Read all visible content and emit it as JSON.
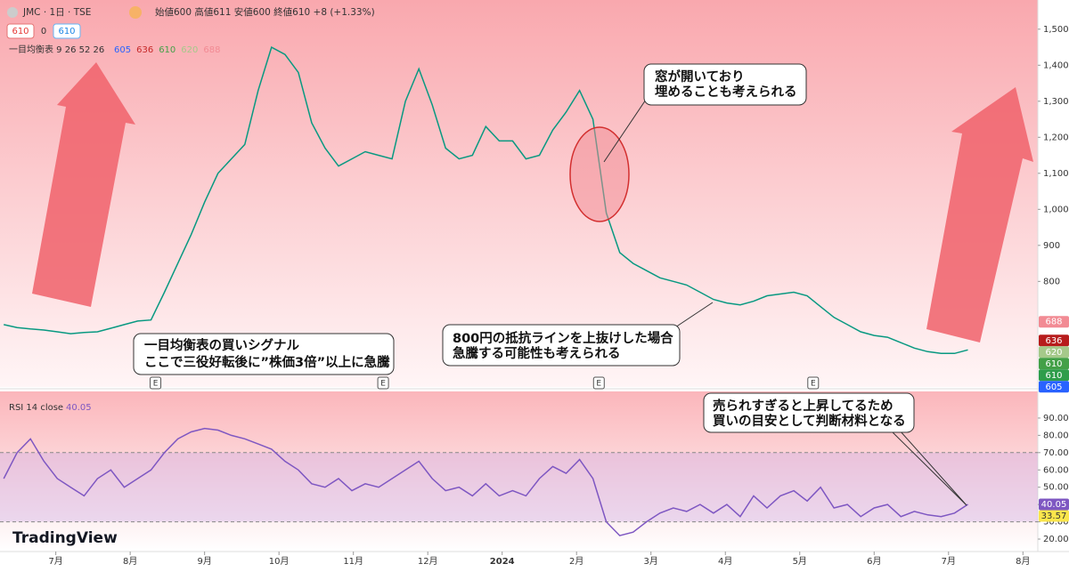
{
  "chart_data": [
    {
      "type": "line",
      "title": "JMC · 1日 · TSE",
      "ohlc_label": "始値600 高値611 安値600 終値610 +8 (+1.33%)",
      "header_boxes": [
        "610",
        "0",
        "610"
      ],
      "indicator_label": "一目均衡表 9 26 52 26",
      "indicator_values": [
        "605",
        "636",
        "610",
        "620",
        "688"
      ],
      "color": "#089981",
      "x": [
        6.3,
        6.48,
        6.66,
        6.84,
        7.02,
        7.2,
        7.38,
        7.56,
        7.74,
        7.92,
        8.1,
        8.28,
        8.46,
        8.64,
        8.82,
        9.0,
        9.18,
        9.36,
        9.54,
        9.72,
        9.9,
        10.08,
        10.26,
        10.44,
        10.62,
        10.8,
        10.98,
        11.16,
        11.34,
        11.52,
        11.7,
        11.88,
        12.06,
        12.24,
        12.42,
        12.6,
        12.78,
        12.96,
        13.14,
        13.32,
        13.5,
        13.68,
        13.86,
        14.04,
        14.22,
        14.4,
        14.58,
        14.76,
        14.94,
        15.12,
        15.3,
        15.48,
        15.66,
        15.84,
        16.02,
        16.2,
        16.38,
        16.56,
        16.74,
        16.92,
        17.1,
        17.28,
        17.46,
        17.64,
        17.82,
        18.0,
        18.18,
        18.36,
        18.54,
        18.72,
        18.9,
        19.08,
        19.26
      ],
      "values": [
        680,
        672,
        668,
        665,
        660,
        655,
        658,
        660,
        670,
        680,
        690,
        693,
        770,
        850,
        930,
        1020,
        1100,
        1140,
        1180,
        1330,
        1450,
        1430,
        1380,
        1240,
        1170,
        1120,
        1140,
        1160,
        1150,
        1140,
        1300,
        1390,
        1290,
        1170,
        1140,
        1150,
        1230,
        1190,
        1190,
        1140,
        1150,
        1220,
        1270,
        1330,
        1250,
        990,
        880,
        850,
        830,
        810,
        800,
        790,
        770,
        750,
        740,
        735,
        745,
        760,
        765,
        770,
        760,
        730,
        700,
        680,
        660,
        650,
        645,
        630,
        615,
        605,
        600,
        600,
        610
      ],
      "xlim": [
        6.25,
        20.2
      ],
      "ylim": [
        507,
        1581
      ],
      "yticks": [
        800,
        900,
        {
          "value": 1000,
          "label": "1,000"
        },
        {
          "value": 1100,
          "label": "1,100"
        },
        {
          "value": 1200,
          "label": "1,200"
        },
        {
          "value": 1300,
          "label": "1,300"
        },
        {
          "value": 1400,
          "label": "1,400"
        },
        {
          "value": 1500,
          "label": "1,500"
        }
      ],
      "price_badges": [
        {
          "value": 688,
          "color": "#f28b94"
        },
        {
          "value": 636,
          "color": "#b71c1c"
        },
        {
          "value": 620,
          "color": "#a5c98a"
        },
        {
          "value": 610,
          "color": "#43a047"
        },
        {
          "value": 610,
          "color": "#2e9d4b"
        },
        {
          "value": 605,
          "color": "#2962ff"
        }
      ],
      "events": [
        {
          "x": 8.34,
          "label": "E"
        },
        {
          "x": 11.4,
          "label": "E"
        },
        {
          "x": 14.3,
          "label": "E"
        },
        {
          "x": 17.18,
          "label": "E"
        }
      ],
      "annotations": [
        {
          "lines": [
            "一目均衡表の買いシグナル",
            "ここで三役好転後に”株価3倍”以上に急騰"
          ]
        },
        {
          "lines": [
            "窓が開いており",
            "埋めることも考えられる"
          ]
        },
        {
          "lines": [
            "800円の抵抗ラインを上抜けした場合",
            "急騰する可能性も考えられる"
          ]
        }
      ]
    },
    {
      "type": "line",
      "title": "RSI 14 close",
      "color": "#7e57c2",
      "x": [
        6.3,
        6.48,
        6.66,
        6.84,
        7.02,
        7.2,
        7.38,
        7.56,
        7.74,
        7.92,
        8.1,
        8.28,
        8.46,
        8.64,
        8.82,
        9.0,
        9.18,
        9.36,
        9.54,
        9.72,
        9.9,
        10.08,
        10.26,
        10.44,
        10.62,
        10.8,
        10.98,
        11.16,
        11.34,
        11.52,
        11.7,
        11.88,
        12.06,
        12.24,
        12.42,
        12.6,
        12.78,
        12.96,
        13.14,
        13.32,
        13.5,
        13.68,
        13.86,
        14.04,
        14.22,
        14.4,
        14.58,
        14.76,
        14.94,
        15.12,
        15.3,
        15.48,
        15.66,
        15.84,
        16.02,
        16.2,
        16.38,
        16.56,
        16.74,
        16.92,
        17.1,
        17.28,
        17.46,
        17.64,
        17.82,
        18.0,
        18.18,
        18.36,
        18.54,
        18.72,
        18.9,
        19.08,
        19.26
      ],
      "values": [
        55,
        70,
        78,
        65,
        55,
        50,
        45,
        55,
        60,
        50,
        55,
        60,
        70,
        78,
        82,
        84,
        83,
        80,
        78,
        75,
        72,
        65,
        60,
        52,
        50,
        55,
        48,
        52,
        50,
        55,
        60,
        65,
        55,
        48,
        50,
        45,
        52,
        45,
        48,
        45,
        55,
        62,
        58,
        66,
        55,
        30,
        22,
        24,
        30,
        35,
        38,
        36,
        40,
        35,
        40,
        33,
        45,
        38,
        45,
        48,
        42,
        50,
        38,
        40,
        33,
        38,
        40,
        33,
        36,
        34,
        33,
        35,
        40.05
      ],
      "value_label": "40.05",
      "xlim": [
        6.25,
        20.2
      ],
      "ylim": [
        12.8,
        105.4
      ],
      "yticks": [
        {
          "value": 20,
          "label": "20.00"
        },
        {
          "value": 30,
          "label": "30.00"
        },
        {
          "value": 40,
          "label": "40.00"
        },
        {
          "value": 50,
          "label": "50.00"
        },
        {
          "value": 60,
          "label": "60.00"
        },
        {
          "value": 70,
          "label": "70.00"
        },
        {
          "value": 80,
          "label": "80.00"
        },
        {
          "value": 90,
          "label": "90.00"
        }
      ],
      "xticks": [
        {
          "value": 7,
          "label": "7月"
        },
        {
          "value": 8,
          "label": "8月"
        },
        {
          "value": 9,
          "label": "9月"
        },
        {
          "value": 10,
          "label": "10月"
        },
        {
          "value": 11,
          "label": "11月"
        },
        {
          "value": 12,
          "label": "12月"
        },
        {
          "value": 13,
          "label": "2024"
        },
        {
          "value": 14,
          "label": "2月"
        },
        {
          "value": 15,
          "label": "3月"
        },
        {
          "value": 16,
          "label": "4月"
        },
        {
          "value": 17,
          "label": "5月"
        },
        {
          "value": 18,
          "label": "6月"
        },
        {
          "value": 19,
          "label": "7月"
        },
        {
          "value": 20,
          "label": "8月"
        }
      ],
      "badges": [
        {
          "value": 40.05,
          "color": "#7e57c2"
        },
        {
          "value": 33.57,
          "color": "#fbe64b"
        }
      ],
      "annotation": {
        "lines": [
          "売られすぎると上昇してるため",
          "買いの目安として判断材料となる"
        ]
      },
      "brand": "TradingView"
    }
  ]
}
